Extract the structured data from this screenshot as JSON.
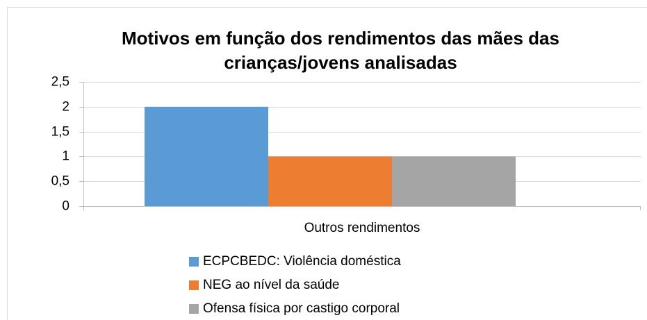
{
  "chart_data": {
    "type": "bar",
    "title": "Motivos em função dos rendimentos das mães das crianças/jovens analisadas",
    "categories": [
      "Outros rendimentos"
    ],
    "series": [
      {
        "name": "ECPCBEDC: Violência doméstica",
        "color": "#5b9bd5",
        "values": [
          2
        ]
      },
      {
        "name": "NEG ao nível da saúde",
        "color": "#ed7d31",
        "values": [
          1
        ]
      },
      {
        "name": "Ofensa física por castigo corporal",
        "color": "#a5a5a5",
        "values": [
          1
        ]
      }
    ],
    "ylim": [
      0,
      2.5
    ],
    "yticks": [
      0,
      {
        "value": 0.5,
        "label": "0,5"
      },
      1,
      {
        "value": 1.5,
        "label": "1,5"
      },
      2,
      {
        "value": 2.5,
        "label": "2,5"
      }
    ],
    "grid": true,
    "legend": "bottom"
  }
}
